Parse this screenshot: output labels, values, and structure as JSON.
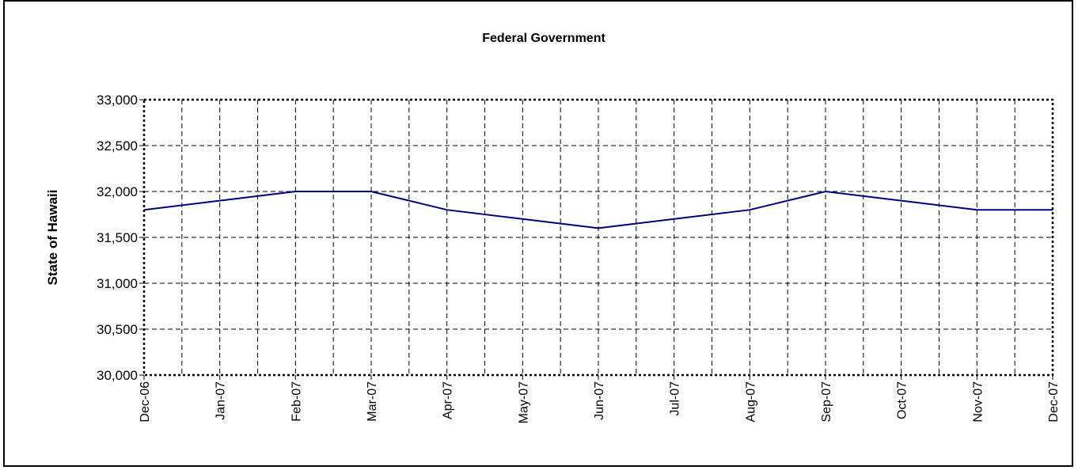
{
  "chart_data": {
    "type": "line",
    "title": "Federal Government",
    "xlabel": "",
    "ylabel": "State of Hawaii",
    "categories": [
      "Dec-06",
      "Jan-07",
      "Feb-07",
      "Mar-07",
      "Apr-07",
      "May-07",
      "Jun-07",
      "Jul-07",
      "Aug-07",
      "Sep-07",
      "Oct-07",
      "Nov-07",
      "Dec-07"
    ],
    "series": [
      {
        "color": "#000080",
        "values": [
          31800,
          31900,
          32000,
          32000,
          31800,
          31700,
          31600,
          31700,
          31800,
          32000,
          31900,
          31800,
          31800
        ]
      }
    ],
    "ylim": [
      30000,
      33000
    ],
    "yticks": [
      30000,
      30500,
      31000,
      31500,
      32000,
      32500,
      33000
    ],
    "ytick_labels": [
      "30,000",
      "30,500",
      "31,000",
      "31,500",
      "32,000",
      "32,500",
      "33,000"
    ],
    "grid": true,
    "legend": "none"
  }
}
